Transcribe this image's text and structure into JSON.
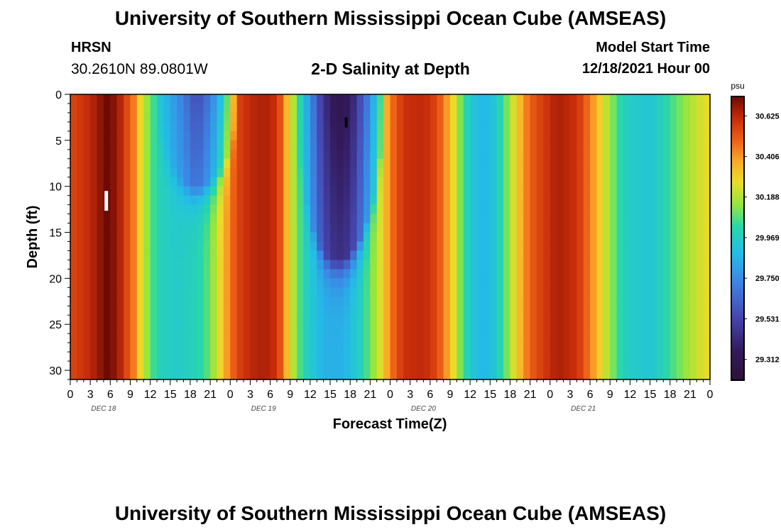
{
  "header": {
    "title": "University of Southern Mississippi Ocean Cube (AMSEAS)",
    "station": "HRSN",
    "coordinates": "30.2610N  89.0801W",
    "subtitle": "2-D Salinity at Depth",
    "model_start_label": "Model Start Time",
    "model_start_value": "12/18/2021 Hour 00"
  },
  "footer": {
    "title": "University of Southern Mississippi Ocean Cube (AMSEAS)"
  },
  "chart_data": {
    "type": "heatmap",
    "title": "2-D Salinity at Depth",
    "xlabel": "Forecast Time(Z)",
    "ylabel": "Depth (ft)",
    "x_ticks": [
      "0",
      "3",
      "6",
      "9",
      "12",
      "15",
      "18",
      "21",
      "0",
      "3",
      "6",
      "9",
      "12",
      "15",
      "18",
      "21",
      "0",
      "3",
      "6",
      "9",
      "12",
      "15",
      "18",
      "21",
      "0",
      "3",
      "6",
      "9",
      "12",
      "15",
      "18",
      "21",
      "0"
    ],
    "day_labels": [
      "DEC 18",
      "DEC 19",
      "DEC 20",
      "DEC 21"
    ],
    "y_ticks": [
      0,
      5,
      10,
      15,
      20,
      25,
      30
    ],
    "ylim": [
      0,
      31
    ],
    "x_range_hours": [
      0,
      96
    ],
    "colorbar": {
      "unit": "psu",
      "min": 29.2,
      "max": 30.73,
      "ticks": [
        30.625,
        30.406,
        30.188,
        29.969,
        29.75,
        29.531,
        29.312
      ],
      "tick_labels": [
        "30.625",
        "30.406",
        "30.188",
        "29.969",
        "29.750",
        "29.531",
        "29.312"
      ]
    },
    "surface_salinity_keyframes": [
      [
        0,
        30.55
      ],
      [
        3,
        30.62
      ],
      [
        5.5,
        30.73
      ],
      [
        7,
        30.68
      ],
      [
        9.5,
        30.45
      ],
      [
        11,
        30.2
      ],
      [
        13,
        29.95
      ],
      [
        17,
        29.7
      ],
      [
        19,
        29.55
      ],
      [
        21,
        29.7
      ],
      [
        23,
        29.95
      ],
      [
        24,
        30.2
      ],
      [
        25,
        30.5
      ],
      [
        27,
        30.62
      ],
      [
        29,
        30.65
      ],
      [
        31,
        30.6
      ],
      [
        32,
        30.45
      ],
      [
        33,
        30.25
      ],
      [
        34.5,
        30.0
      ],
      [
        36,
        29.75
      ],
      [
        38,
        29.45
      ],
      [
        40,
        29.3
      ],
      [
        42,
        29.35
      ],
      [
        45,
        29.75
      ],
      [
        47,
        30.15
      ],
      [
        48,
        30.4
      ],
      [
        50,
        30.6
      ],
      [
        53,
        30.62
      ],
      [
        55,
        30.55
      ],
      [
        57,
        30.35
      ],
      [
        59,
        30.05
      ],
      [
        61,
        29.88
      ],
      [
        63,
        29.88
      ],
      [
        65,
        30.05
      ],
      [
        67,
        30.3
      ],
      [
        69,
        30.5
      ],
      [
        73,
        30.65
      ],
      [
        76,
        30.6
      ],
      [
        78,
        30.45
      ],
      [
        80,
        30.25
      ],
      [
        83,
        29.98
      ],
      [
        87,
        29.92
      ],
      [
        90,
        30.05
      ],
      [
        94,
        30.22
      ],
      [
        96,
        30.28
      ]
    ],
    "deep_salinity_keyframes": [
      [
        0,
        30.55
      ],
      [
        3,
        30.62
      ],
      [
        5.5,
        30.73
      ],
      [
        7,
        30.68
      ],
      [
        9.5,
        30.45
      ],
      [
        11,
        30.2
      ],
      [
        13,
        30.0
      ],
      [
        16,
        29.95
      ],
      [
        19,
        30.0
      ],
      [
        21,
        30.1
      ],
      [
        23,
        30.35
      ],
      [
        25,
        30.55
      ],
      [
        27,
        30.62
      ],
      [
        29,
        30.65
      ],
      [
        31,
        30.6
      ],
      [
        32,
        30.45
      ],
      [
        33,
        30.25
      ],
      [
        35,
        30.0
      ],
      [
        38,
        29.85
      ],
      [
        41,
        29.85
      ],
      [
        43,
        29.95
      ],
      [
        45,
        30.1
      ],
      [
        47,
        30.3
      ],
      [
        48,
        30.45
      ],
      [
        50,
        30.6
      ],
      [
        53,
        30.62
      ],
      [
        55,
        30.55
      ],
      [
        57,
        30.35
      ],
      [
        59,
        30.05
      ],
      [
        61,
        29.88
      ],
      [
        63,
        29.88
      ],
      [
        65,
        30.05
      ],
      [
        67,
        30.3
      ],
      [
        69,
        30.5
      ],
      [
        73,
        30.65
      ],
      [
        76,
        30.6
      ],
      [
        78,
        30.45
      ],
      [
        80,
        30.25
      ],
      [
        83,
        29.98
      ],
      [
        87,
        29.92
      ],
      [
        90,
        30.05
      ],
      [
        94,
        30.22
      ],
      [
        96,
        30.28
      ]
    ],
    "low_salinity_lenses": [
      {
        "t_start": 13,
        "t_end": 25,
        "t_center": 19,
        "max_depth_ft": 10
      },
      {
        "t_start": 34,
        "t_end": 47,
        "t_center": 40,
        "max_depth_ft": 18
      }
    ]
  }
}
